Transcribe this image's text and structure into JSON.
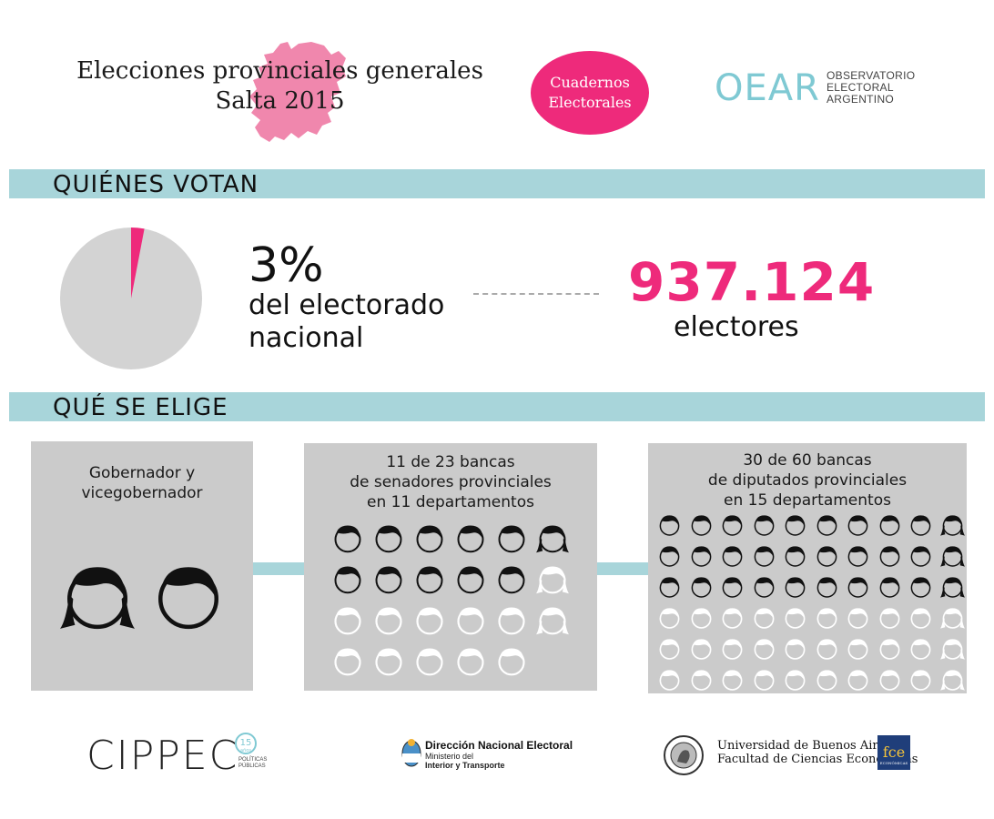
{
  "header": {
    "title_line1": "Elecciones provinciales generales",
    "title_line2": "Salta 2015",
    "badge_line1": "Cuadernos",
    "badge_line2": "Electorales",
    "oear_logo": "OEAR",
    "oear_line1": "OBSERVATORIO",
    "oear_line2": "ELECTORAL",
    "oear_line3": "ARGENTINO"
  },
  "quienes": {
    "section_label": "QUIÉNES VOTAN",
    "percent_label": "3%",
    "percent_value": 0.03,
    "desc_line1": "del electorado",
    "desc_line2": "nacional",
    "electores_value": "937.124",
    "electores_label": "electores"
  },
  "que": {
    "section_label": "QUÉ SE ELIGE",
    "boxes": [
      {
        "line1": "Gobernador y",
        "line2": "vicegobernador",
        "line3": "",
        "filled": 2,
        "total": 2
      },
      {
        "line1": "11 de 23 bancas",
        "line2": "de senadores provinciales",
        "line3": "en 11 departamentos",
        "filled": 11,
        "total": 23
      },
      {
        "line1": "30 de 60 bancas",
        "line2": "de diputados provinciales",
        "line3": "en 15 departamentos",
        "filled": 30,
        "total": 60
      }
    ]
  },
  "footer": {
    "cippec": "CIPPEC",
    "cippec_badge": "15",
    "cippec_badge_sub": "años",
    "cippec_sub1": "POLÍTICAS",
    "cippec_sub2": "PÚBLICAS",
    "dne_title": "Dirección Nacional Electoral",
    "dne_sub1": "Ministerio del",
    "dne_sub2": "Interior y Transporte",
    "uba_line1": "Universidad de Buenos Aires",
    "uba_line2": "Facultad de Ciencias Económicas",
    "fce": "fce",
    "fce_sub": "ECONÓMICAS"
  },
  "colors": {
    "accent": "#ee2a7b",
    "bar": "#a8d5da",
    "box": "#cbcbcb",
    "pie": "#d3d3d3"
  },
  "icons": [
    "salta-map-icon",
    "person-face-icon",
    "argentina-shield-icon",
    "uba-seal-icon"
  ]
}
